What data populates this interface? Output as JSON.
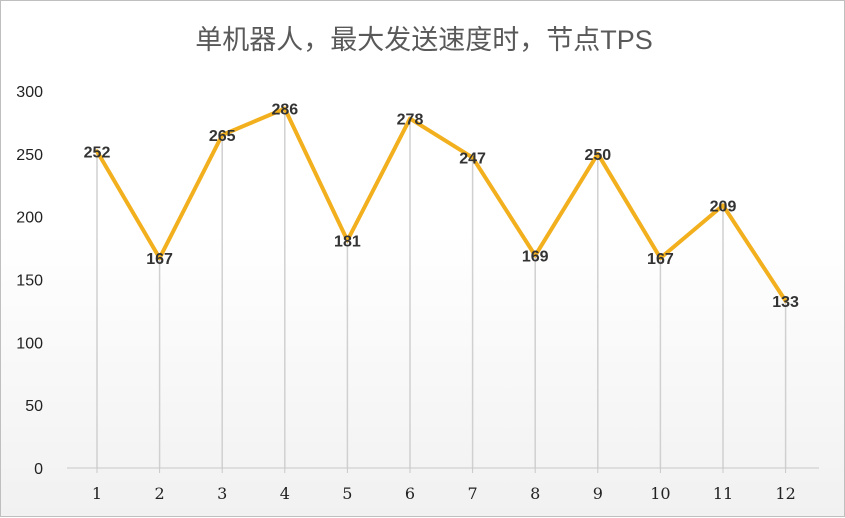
{
  "chart_data": {
    "type": "line",
    "title": "单机器人，最大发送速度时，节点TPS",
    "xlabel": "",
    "ylabel": "",
    "categories": [
      "1",
      "2",
      "3",
      "4",
      "5",
      "6",
      "7",
      "8",
      "9",
      "10",
      "11",
      "12"
    ],
    "series": [
      {
        "values": [
          252,
          167,
          265,
          286,
          181,
          278,
          247,
          169,
          250,
          167,
          209,
          133
        ]
      }
    ],
    "ylim": [
      0,
      300
    ],
    "yticks": [
      "0",
      "50",
      "100",
      "150",
      "200",
      "250",
      "300"
    ],
    "grid": "vertical drop lines",
    "data_labels": true,
    "line_color": "#F2B01E",
    "legend": "none"
  }
}
